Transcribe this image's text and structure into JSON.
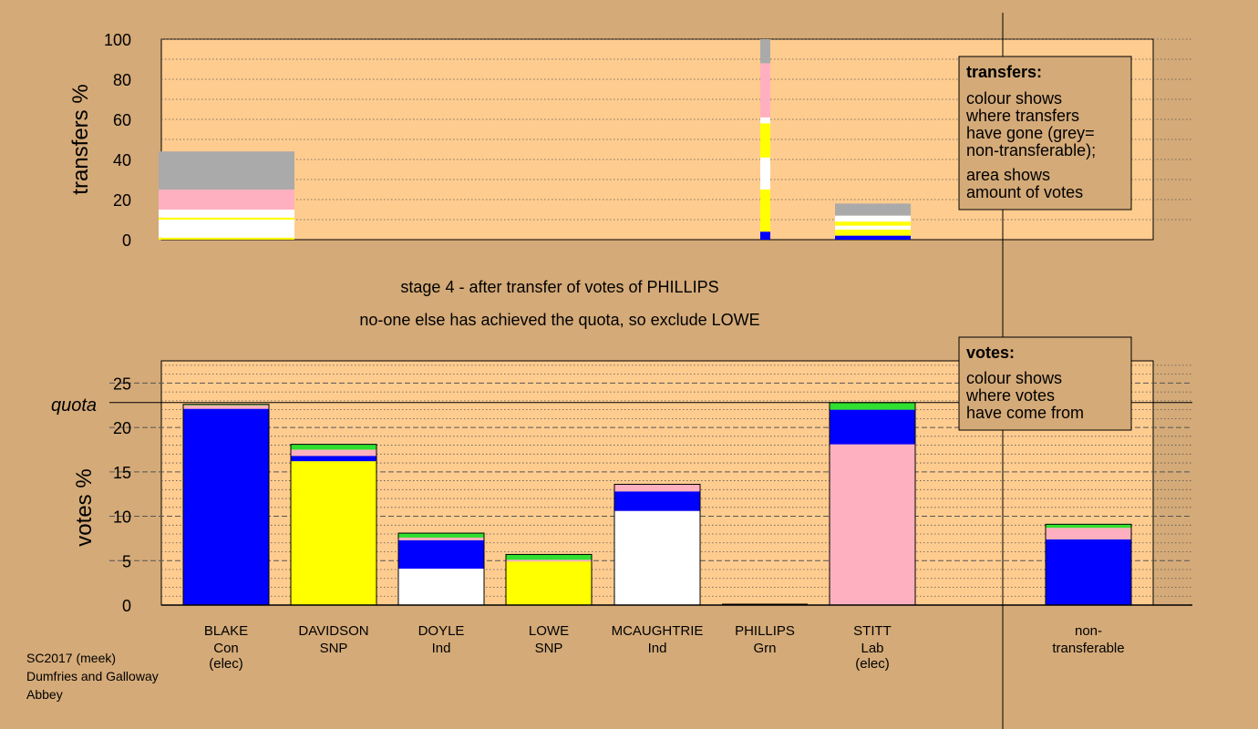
{
  "colors": {
    "background": "#d4aa78",
    "plot_bg": "#ffcc8f",
    "legend_bg": "#d4aa78",
    "blue": "#0000ff",
    "yellow": "#ffff00",
    "white": "#ffffff",
    "pink": "#ffb0c0",
    "green": "#30e030",
    "grey": "#aaaaaa"
  },
  "stage_text": "stage 4 - after transfer of votes of PHILLIPS",
  "exclude_text": "no-one else has achieved the quota, so exclude LOWE",
  "footer": [
    "SC2017 (meek)",
    "Dumfries and Galloway",
    "Abbey"
  ],
  "legend_transfers": {
    "title": "transfers:",
    "lines1": [
      "colour shows",
      "where transfers",
      "have gone (grey=",
      "non-transferable);"
    ],
    "lines2": [
      "area shows",
      "amount of votes"
    ]
  },
  "legend_votes": {
    "title": "votes:",
    "lines": [
      "colour shows",
      "where votes",
      "have come from"
    ]
  },
  "chart_data": [
    {
      "type": "bar",
      "stacked": true,
      "name": "transfers",
      "ylabel": "transfers %",
      "ylim": [
        0,
        100
      ],
      "yticks": [
        0,
        20,
        40,
        60,
        80,
        100
      ],
      "bars": [
        {
          "source": "BLAKE",
          "segments": [
            {
              "color": "yellow",
              "value": 1
            },
            {
              "color": "white",
              "value": 9
            },
            {
              "color": "yellow",
              "value": 1
            },
            {
              "color": "white",
              "value": 4
            },
            {
              "color": "pink",
              "value": 10
            },
            {
              "color": "grey",
              "value": 19
            }
          ]
        },
        {
          "source": "PHILLIPS",
          "segments": [
            {
              "color": "blue",
              "value": 4
            },
            {
              "color": "yellow",
              "value": 21
            },
            {
              "color": "white",
              "value": 16
            },
            {
              "color": "yellow",
              "value": 17
            },
            {
              "color": "white",
              "value": 3
            },
            {
              "color": "pink",
              "value": 27
            },
            {
              "color": "grey",
              "value": 12
            }
          ]
        },
        {
          "source": "STITT",
          "segments": [
            {
              "color": "blue",
              "value": 2
            },
            {
              "color": "yellow",
              "value": 3
            },
            {
              "color": "white",
              "value": 2
            },
            {
              "color": "yellow",
              "value": 2
            },
            {
              "color": "white",
              "value": 3
            },
            {
              "color": "grey",
              "value": 6
            }
          ]
        }
      ]
    },
    {
      "type": "bar",
      "stacked": true,
      "name": "votes",
      "ylabel": "votes %",
      "ylim": [
        0,
        27.5
      ],
      "yticks": [
        0,
        5,
        10,
        15,
        20,
        25
      ],
      "quota": 22.8,
      "quota_label": "quota",
      "candidates": [
        {
          "name": "BLAKE",
          "party": "Con",
          "status": "(elec)",
          "segments": [
            {
              "color": "blue",
              "value": 22.1
            },
            {
              "color": "pink",
              "value": 0.4
            },
            {
              "color": "green",
              "value": 0.1
            }
          ]
        },
        {
          "name": "DAVIDSON",
          "party": "SNP",
          "status": "",
          "segments": [
            {
              "color": "yellow",
              "value": 16.2
            },
            {
              "color": "blue",
              "value": 0.6
            },
            {
              "color": "pink",
              "value": 0.7
            },
            {
              "color": "green",
              "value": 0.6
            }
          ]
        },
        {
          "name": "DOYLE",
          "party": "Ind",
          "status": "",
          "segments": [
            {
              "color": "white",
              "value": 4.1
            },
            {
              "color": "blue",
              "value": 3.2
            },
            {
              "color": "pink",
              "value": 0.3
            },
            {
              "color": "green",
              "value": 0.5
            }
          ]
        },
        {
          "name": "LOWE",
          "party": "SNP",
          "status": "",
          "segments": [
            {
              "color": "yellow",
              "value": 4.9
            },
            {
              "color": "pink",
              "value": 0.2
            },
            {
              "color": "green",
              "value": 0.6
            }
          ]
        },
        {
          "name": "MCAUGHTRIE",
          "party": "Ind",
          "status": "",
          "segments": [
            {
              "color": "white",
              "value": 10.6
            },
            {
              "color": "blue",
              "value": 2.2
            },
            {
              "color": "pink",
              "value": 0.8
            }
          ]
        },
        {
          "name": "PHILLIPS",
          "party": "Grn",
          "status": "",
          "segments": []
        },
        {
          "name": "STITT",
          "party": "Lab",
          "status": "(elec)",
          "segments": [
            {
              "color": "pink",
              "value": 18.1
            },
            {
              "color": "blue",
              "value": 3.9
            },
            {
              "color": "green",
              "value": 0.8
            }
          ]
        },
        {
          "name": "non-",
          "party": "transferable",
          "status": "",
          "segments": [
            {
              "color": "blue",
              "value": 7.4
            },
            {
              "color": "pink",
              "value": 1.3
            },
            {
              "color": "green",
              "value": 0.4
            }
          ]
        }
      ]
    }
  ]
}
